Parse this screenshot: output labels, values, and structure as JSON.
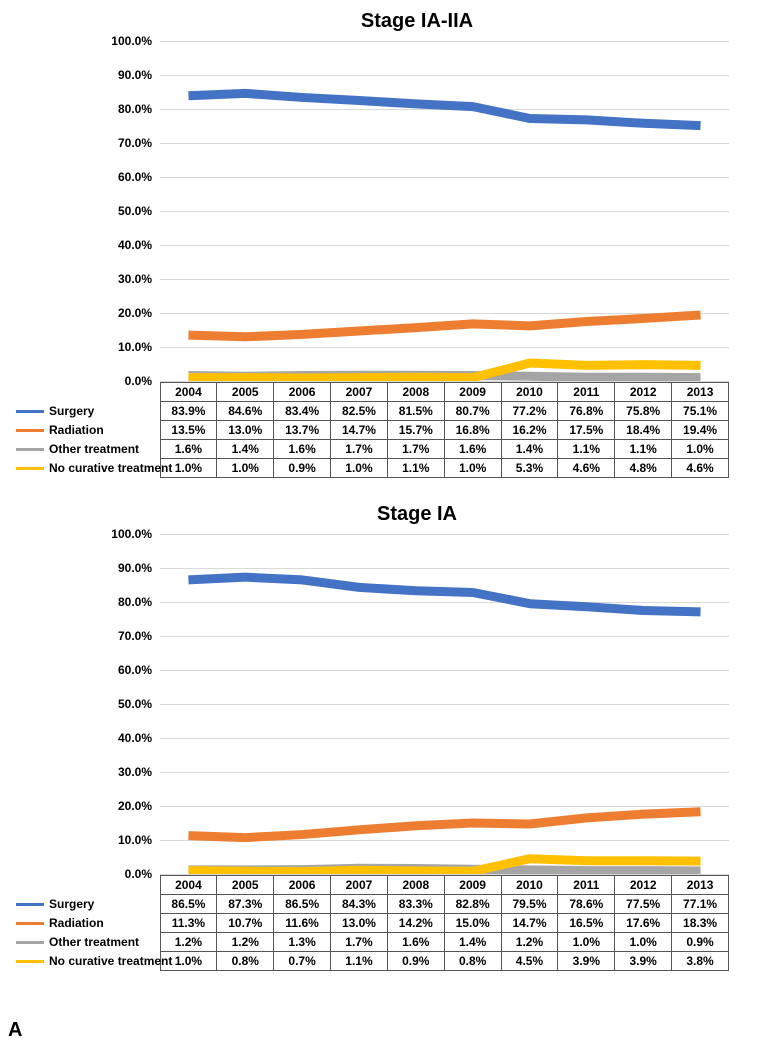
{
  "panel_label": "A",
  "years": [
    "2004",
    "2005",
    "2006",
    "2007",
    "2008",
    "2009",
    "2010",
    "2011",
    "2012",
    "2013"
  ],
  "y_axis": {
    "min": 0,
    "max": 100,
    "step": 10,
    "tick_format_suffix": ".0%"
  },
  "series_meta": [
    {
      "key": "surgery",
      "label": "Surgery",
      "color": "#4472c4",
      "width": 3
    },
    {
      "key": "radiation",
      "label": "Radiation",
      "color": "#ed7d31",
      "width": 3
    },
    {
      "key": "other",
      "label": "Other treatment",
      "color": "#a5a5a5",
      "width": 3
    },
    {
      "key": "none",
      "label": "No curative treatment",
      "color": "#ffc000",
      "width": 3
    }
  ],
  "charts": [
    {
      "title": "Stage IA-IIA",
      "data": {
        "surgery": [
          83.9,
          84.6,
          83.4,
          82.5,
          81.5,
          80.7,
          77.2,
          76.8,
          75.8,
          75.1
        ],
        "radiation": [
          13.5,
          13.0,
          13.7,
          14.7,
          15.7,
          16.8,
          16.2,
          17.5,
          18.4,
          19.4
        ],
        "other": [
          1.6,
          1.4,
          1.6,
          1.7,
          1.7,
          1.6,
          1.4,
          1.1,
          1.1,
          1.0
        ],
        "none": [
          1.0,
          1.0,
          0.9,
          1.0,
          1.1,
          1.0,
          5.3,
          4.6,
          4.8,
          4.6
        ]
      },
      "display": {
        "surgery": [
          "83.9%",
          "84.6%",
          "83.4%",
          "82.5%",
          "81.5%",
          "80.7%",
          "77.2%",
          "76.8%",
          "75.8%",
          "75.1%"
        ],
        "radiation": [
          "13.5%",
          "13.0%",
          "13.7%",
          "14.7%",
          "15.7%",
          "16.8%",
          "16.2%",
          "17.5%",
          "18.4%",
          "19.4%"
        ],
        "other": [
          "1.6%",
          "1.4%",
          "1.6%",
          "1.7%",
          "1.7%",
          "1.6%",
          "1.4%",
          "1.1%",
          "1.1%",
          "1.0%"
        ],
        "none": [
          "1.0%",
          "1.0%",
          "0.9%",
          "1.0%",
          "1.1%",
          "1.0%",
          "5.3%",
          "4.6%",
          "4.8%",
          "4.6%"
        ]
      }
    },
    {
      "title": "Stage IA",
      "data": {
        "surgery": [
          86.5,
          87.3,
          86.5,
          84.3,
          83.3,
          82.8,
          79.5,
          78.6,
          77.5,
          77.1
        ],
        "radiation": [
          11.3,
          10.7,
          11.6,
          13.0,
          14.2,
          15.0,
          14.7,
          16.5,
          17.6,
          18.3
        ],
        "other": [
          1.2,
          1.2,
          1.3,
          1.7,
          1.6,
          1.4,
          1.2,
          1.0,
          1.0,
          0.9
        ],
        "none": [
          1.0,
          0.8,
          0.7,
          1.1,
          0.9,
          0.8,
          4.5,
          3.9,
          3.9,
          3.8
        ]
      },
      "display": {
        "surgery": [
          "86.5%",
          "87.3%",
          "86.5%",
          "84.3%",
          "83.3%",
          "82.8%",
          "79.5%",
          "78.6%",
          "77.5%",
          "77.1%"
        ],
        "radiation": [
          "11.3%",
          "10.7%",
          "11.6%",
          "13.0%",
          "14.2%",
          "15.0%",
          "14.7%",
          "16.5%",
          "17.6%",
          "18.3%"
        ],
        "other": [
          "1.2%",
          "1.2%",
          "1.3%",
          "1.7%",
          "1.6%",
          "1.4%",
          "1.2%",
          "1.0%",
          "1.0%",
          "0.9%"
        ],
        "none": [
          "1.0%",
          "0.8%",
          "0.7%",
          "1.1%",
          "0.9%",
          "0.8%",
          "4.5%",
          "3.9%",
          "3.9%",
          "3.8%"
        ]
      }
    }
  ]
}
